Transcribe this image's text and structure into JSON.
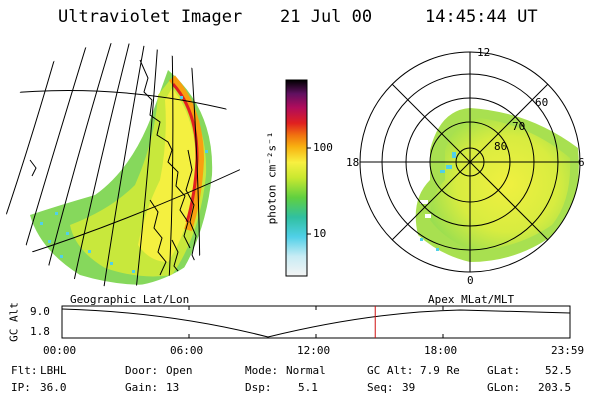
{
  "header": {
    "title": "Ultraviolet Imager",
    "date": "21 Jul 00",
    "time": "14:45:44 UT"
  },
  "colorbar": {
    "label": "photon cm⁻²s⁻¹",
    "ticks": [
      "100",
      "10"
    ]
  },
  "polar": {
    "mlt_labels": [
      "12",
      "18",
      "6",
      "0"
    ],
    "lat_labels": [
      "60",
      "70",
      "80"
    ]
  },
  "captions": {
    "left": "Geographic Lat/Lon",
    "right": "Apex MLat/MLT"
  },
  "altitude": {
    "axis_label": "GC Alt",
    "ytick_top": "9.0",
    "ytick_bottom": "1.8",
    "time_ticks": [
      "00:00",
      "06:00",
      "12:00",
      "18:00",
      "23:59"
    ],
    "current_time_fraction": 0.6166
  },
  "info": {
    "filter_label": "Flt:",
    "filter": "LBHL",
    "door_label": "Door:",
    "door": "Open",
    "mode_label": "Mode:",
    "mode": "Normal",
    "gcalt_label": "GC Alt:",
    "gcalt": "7.9 Re",
    "glat_label": "GLat:",
    "glat": "52.5",
    "ip_label": "IP:",
    "ip": "36.0",
    "gain_label": "Gain:",
    "gain": "13",
    "dsp_label": "Dsp:",
    "dsp": "5.1",
    "seq_label": "Seq:",
    "seq": "39",
    "glon_label": "GLon:",
    "glon": "203.5"
  },
  "colors": {
    "current_time_marker": "#d01010",
    "aurora_peak": "#e02020"
  }
}
